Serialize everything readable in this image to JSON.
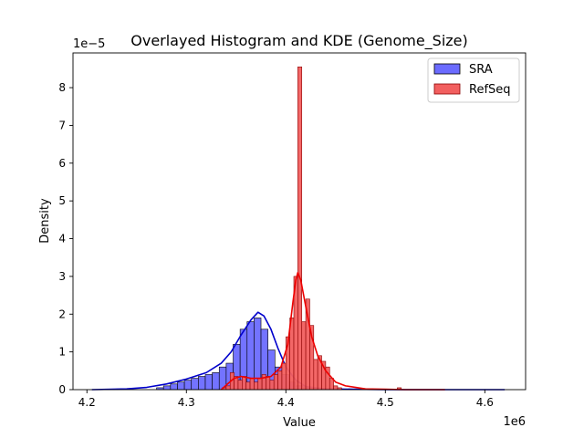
{
  "chart_data": {
    "type": "bar",
    "title": "Overlayed Histogram and KDE (Genome_Size)",
    "xlabel": "Value",
    "ylabel": "Density",
    "x_offset_label": "1e6",
    "y_offset_label": "1e−5",
    "xlim": [
      4.186,
      4.641
    ],
    "ylim": [
      0,
      8.92
    ],
    "x_ticks": [
      {
        "value": 4.2,
        "label": "4.2"
      },
      {
        "value": 4.3,
        "label": "4.3"
      },
      {
        "value": 4.4,
        "label": "4.4"
      },
      {
        "value": 4.5,
        "label": "4.5"
      },
      {
        "value": 4.6,
        "label": "4.6"
      }
    ],
    "y_ticks": [
      {
        "value": 0,
        "label": "0"
      },
      {
        "value": 1,
        "label": "1"
      },
      {
        "value": 2,
        "label": "2"
      },
      {
        "value": 3,
        "label": "3"
      },
      {
        "value": 4,
        "label": "4"
      },
      {
        "value": 5,
        "label": "5"
      },
      {
        "value": 6,
        "label": "6"
      },
      {
        "value": 7,
        "label": "7"
      },
      {
        "value": 8,
        "label": "8"
      }
    ],
    "legend_position": "top-right",
    "grid": false,
    "series": [
      {
        "name": "SRA",
        "bar_color": "#6b6bff",
        "edge_color": "#000000",
        "kde_color": "#0000cc",
        "bins": [
          [
            4.27,
            4.277,
            0.05
          ],
          [
            4.277,
            4.284,
            0.1
          ],
          [
            4.284,
            4.291,
            0.15
          ],
          [
            4.291,
            4.298,
            0.2
          ],
          [
            4.298,
            4.305,
            0.25
          ],
          [
            4.305,
            4.312,
            0.3
          ],
          [
            4.312,
            4.319,
            0.35
          ],
          [
            4.319,
            4.326,
            0.4
          ],
          [
            4.326,
            4.333,
            0.45
          ],
          [
            4.333,
            4.34,
            0.6
          ],
          [
            4.34,
            4.347,
            0.7
          ],
          [
            4.347,
            4.354,
            1.2
          ],
          [
            4.354,
            4.361,
            1.6
          ],
          [
            4.361,
            4.368,
            1.8
          ],
          [
            4.368,
            4.375,
            1.9
          ],
          [
            4.375,
            4.382,
            1.6
          ],
          [
            4.382,
            4.389,
            1.05
          ],
          [
            4.389,
            4.396,
            0.6
          ],
          [
            4.396,
            4.403,
            0.4
          ],
          [
            4.403,
            4.41,
            0.2
          ],
          [
            4.41,
            4.417,
            0.1
          ],
          [
            4.417,
            4.424,
            0.05
          ],
          [
            4.424,
            4.431,
            0.03
          ]
        ],
        "kde": [
          [
            4.205,
            0.0
          ],
          [
            4.24,
            0.02
          ],
          [
            4.26,
            0.06
          ],
          [
            4.28,
            0.15
          ],
          [
            4.3,
            0.28
          ],
          [
            4.32,
            0.45
          ],
          [
            4.335,
            0.7
          ],
          [
            4.345,
            1.0
          ],
          [
            4.355,
            1.45
          ],
          [
            4.365,
            1.85
          ],
          [
            4.372,
            2.05
          ],
          [
            4.378,
            1.95
          ],
          [
            4.385,
            1.6
          ],
          [
            4.392,
            1.1
          ],
          [
            4.4,
            0.6
          ],
          [
            4.41,
            0.25
          ],
          [
            4.42,
            0.08
          ],
          [
            4.44,
            0.02
          ],
          [
            4.5,
            0.0
          ],
          [
            4.62,
            0.0
          ]
        ]
      },
      {
        "name": "RefSeq",
        "bar_color": "#f25f5f",
        "edge_color": "#8b0000",
        "kde_color": "#ee0000",
        "bins": [
          [
            4.336,
            4.34,
            0.05
          ],
          [
            4.34,
            4.344,
            0.1
          ],
          [
            4.344,
            4.348,
            0.45
          ],
          [
            4.348,
            4.352,
            0.35
          ],
          [
            4.352,
            4.356,
            0.25
          ],
          [
            4.356,
            4.36,
            0.35
          ],
          [
            4.36,
            4.364,
            0.2
          ],
          [
            4.364,
            4.368,
            0.3
          ],
          [
            4.368,
            4.372,
            0.2
          ],
          [
            4.372,
            4.376,
            0.3
          ],
          [
            4.376,
            4.38,
            0.4
          ],
          [
            4.38,
            4.384,
            0.35
          ],
          [
            4.384,
            4.388,
            0.25
          ],
          [
            4.388,
            4.392,
            0.4
          ],
          [
            4.392,
            4.396,
            0.5
          ],
          [
            4.396,
            4.4,
            0.7
          ],
          [
            4.4,
            4.404,
            1.4
          ],
          [
            4.404,
            4.408,
            1.9
          ],
          [
            4.408,
            4.412,
            3.0
          ],
          [
            4.412,
            4.416,
            8.55
          ],
          [
            4.416,
            4.42,
            1.8
          ],
          [
            4.42,
            4.424,
            2.4
          ],
          [
            4.424,
            4.428,
            1.7
          ],
          [
            4.428,
            4.432,
            0.8
          ],
          [
            4.432,
            4.436,
            0.9
          ],
          [
            4.436,
            4.44,
            0.75
          ],
          [
            4.44,
            4.444,
            0.6
          ],
          [
            4.444,
            4.448,
            0.3
          ],
          [
            4.448,
            4.452,
            0.1
          ],
          [
            4.452,
            4.456,
            0.05
          ],
          [
            4.512,
            4.516,
            0.05
          ]
        ],
        "kde": [
          [
            4.335,
            0.0
          ],
          [
            4.34,
            0.12
          ],
          [
            4.348,
            0.3
          ],
          [
            4.355,
            0.35
          ],
          [
            4.365,
            0.3
          ],
          [
            4.375,
            0.3
          ],
          [
            4.385,
            0.35
          ],
          [
            4.395,
            0.6
          ],
          [
            4.402,
            1.2
          ],
          [
            4.407,
            2.3
          ],
          [
            4.41,
            2.9
          ],
          [
            4.412,
            3.1
          ],
          [
            4.415,
            2.9
          ],
          [
            4.42,
            2.2
          ],
          [
            4.426,
            1.4
          ],
          [
            4.432,
            0.9
          ],
          [
            4.44,
            0.5
          ],
          [
            4.45,
            0.2
          ],
          [
            4.46,
            0.1
          ],
          [
            4.48,
            0.02
          ],
          [
            4.5,
            0.01
          ],
          [
            4.52,
            0.0
          ],
          [
            4.56,
            0.0
          ]
        ]
      }
    ]
  }
}
